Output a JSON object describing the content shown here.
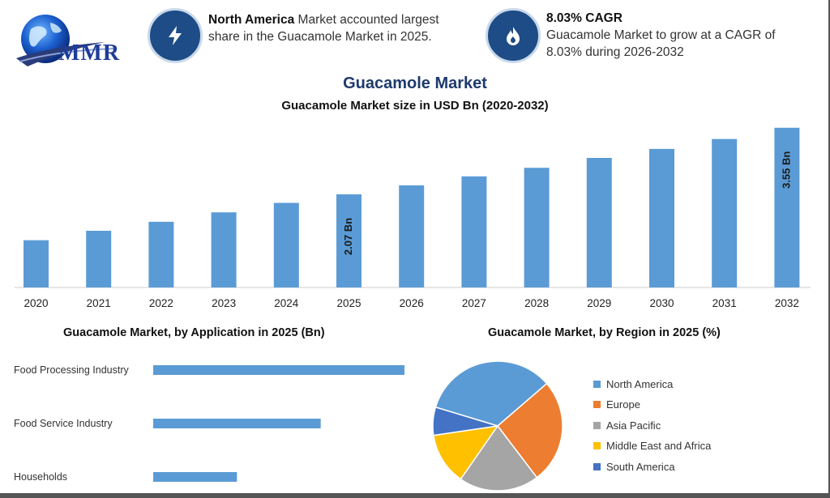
{
  "logo": {
    "text": "MMR"
  },
  "stats": [
    {
      "icon": "lightning-icon",
      "highlight": "North America",
      "text": " Market accounted largest share in the Guacamole Market in 2025."
    },
    {
      "icon": "flame-icon",
      "highlight": "8.03% CAGR",
      "text": "Guacamole Market to grow at a CAGR of 8.03% during 2026-2032"
    }
  ],
  "header": {
    "title": "Guacamole Market",
    "subtitle": "Guacamole Market size in USD Bn (2020-2032)"
  },
  "application_title": "Guacamole Market, by Application in 2025 (Bn)",
  "region_title": "Guacamole Market, by Region in 2025 (%)",
  "colors": {
    "bar": "#5b9bd5",
    "north_america": "#5b9bd5",
    "europe": "#ed7d31",
    "asia_pacific": "#a5a5a5",
    "middle_east_africa": "#ffc000",
    "south_america": "#4472c4"
  },
  "chart_data": [
    {
      "type": "bar",
      "title": "Guacamole Market size in USD Bn (2020-2032)",
      "categories": [
        "2020",
        "2021",
        "2022",
        "2023",
        "2024",
        "2025",
        "2026",
        "2027",
        "2028",
        "2029",
        "2030",
        "2031",
        "2032"
      ],
      "values": [
        1.05,
        1.26,
        1.46,
        1.67,
        1.88,
        2.07,
        2.27,
        2.47,
        2.66,
        2.88,
        3.08,
        3.3,
        3.55
      ],
      "data_labels": {
        "5": "2.07 Bn",
        "12": "3.55 Bn"
      },
      "ylim": [
        0,
        3.6
      ],
      "grid": false
    },
    {
      "type": "bar",
      "orientation": "horizontal",
      "title": "Guacamole Market, by Application in 2025 (Bn)",
      "categories": [
        "Food Processing Industry",
        "Food Service Industry",
        "Households"
      ],
      "values": [
        0.93,
        0.62,
        0.31
      ]
    },
    {
      "type": "pie",
      "title": "Guacamole Market, by Region in 2025 (%)",
      "categories": [
        "North America",
        "Europe",
        "Asia Pacific",
        "Middle East and Africa",
        "South America"
      ],
      "values": [
        34,
        26,
        20,
        13,
        7
      ],
      "legend": "right"
    }
  ]
}
